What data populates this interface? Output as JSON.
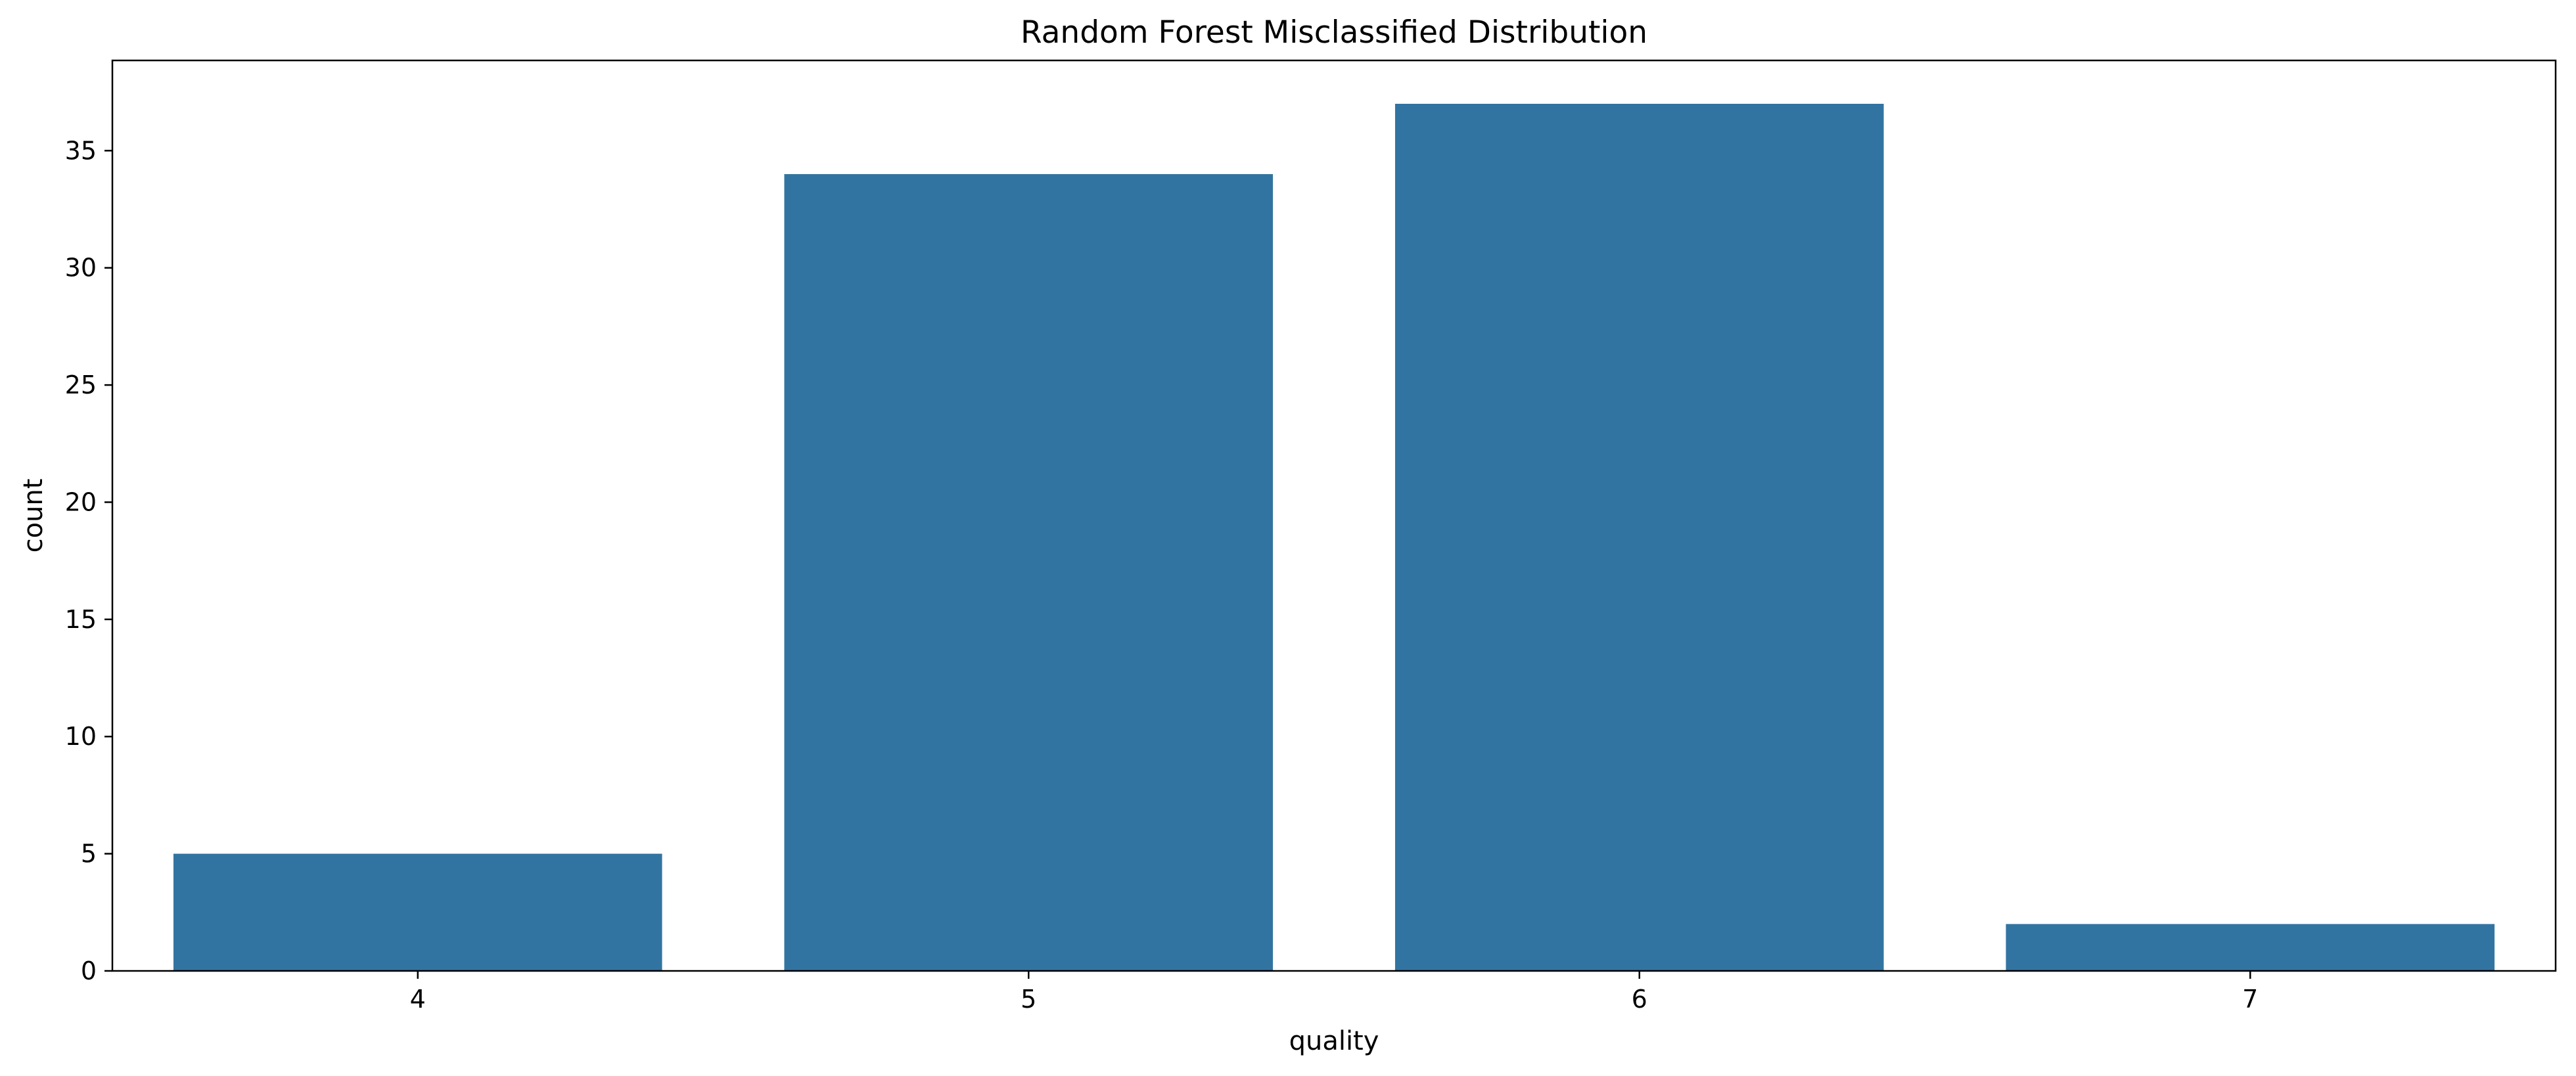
{
  "chart_data": {
    "type": "bar",
    "title": "Random Forest Misclassified Distribution",
    "xlabel": "quality",
    "ylabel": "count",
    "categories": [
      "4",
      "5",
      "6",
      "7"
    ],
    "values": [
      5,
      34,
      37,
      2
    ],
    "ylim": [
      0,
      38.85
    ],
    "yticks": [
      0,
      5,
      10,
      15,
      20,
      25,
      30,
      35
    ],
    "grid": false,
    "legend": "none",
    "bar_color": "#3274a1"
  }
}
